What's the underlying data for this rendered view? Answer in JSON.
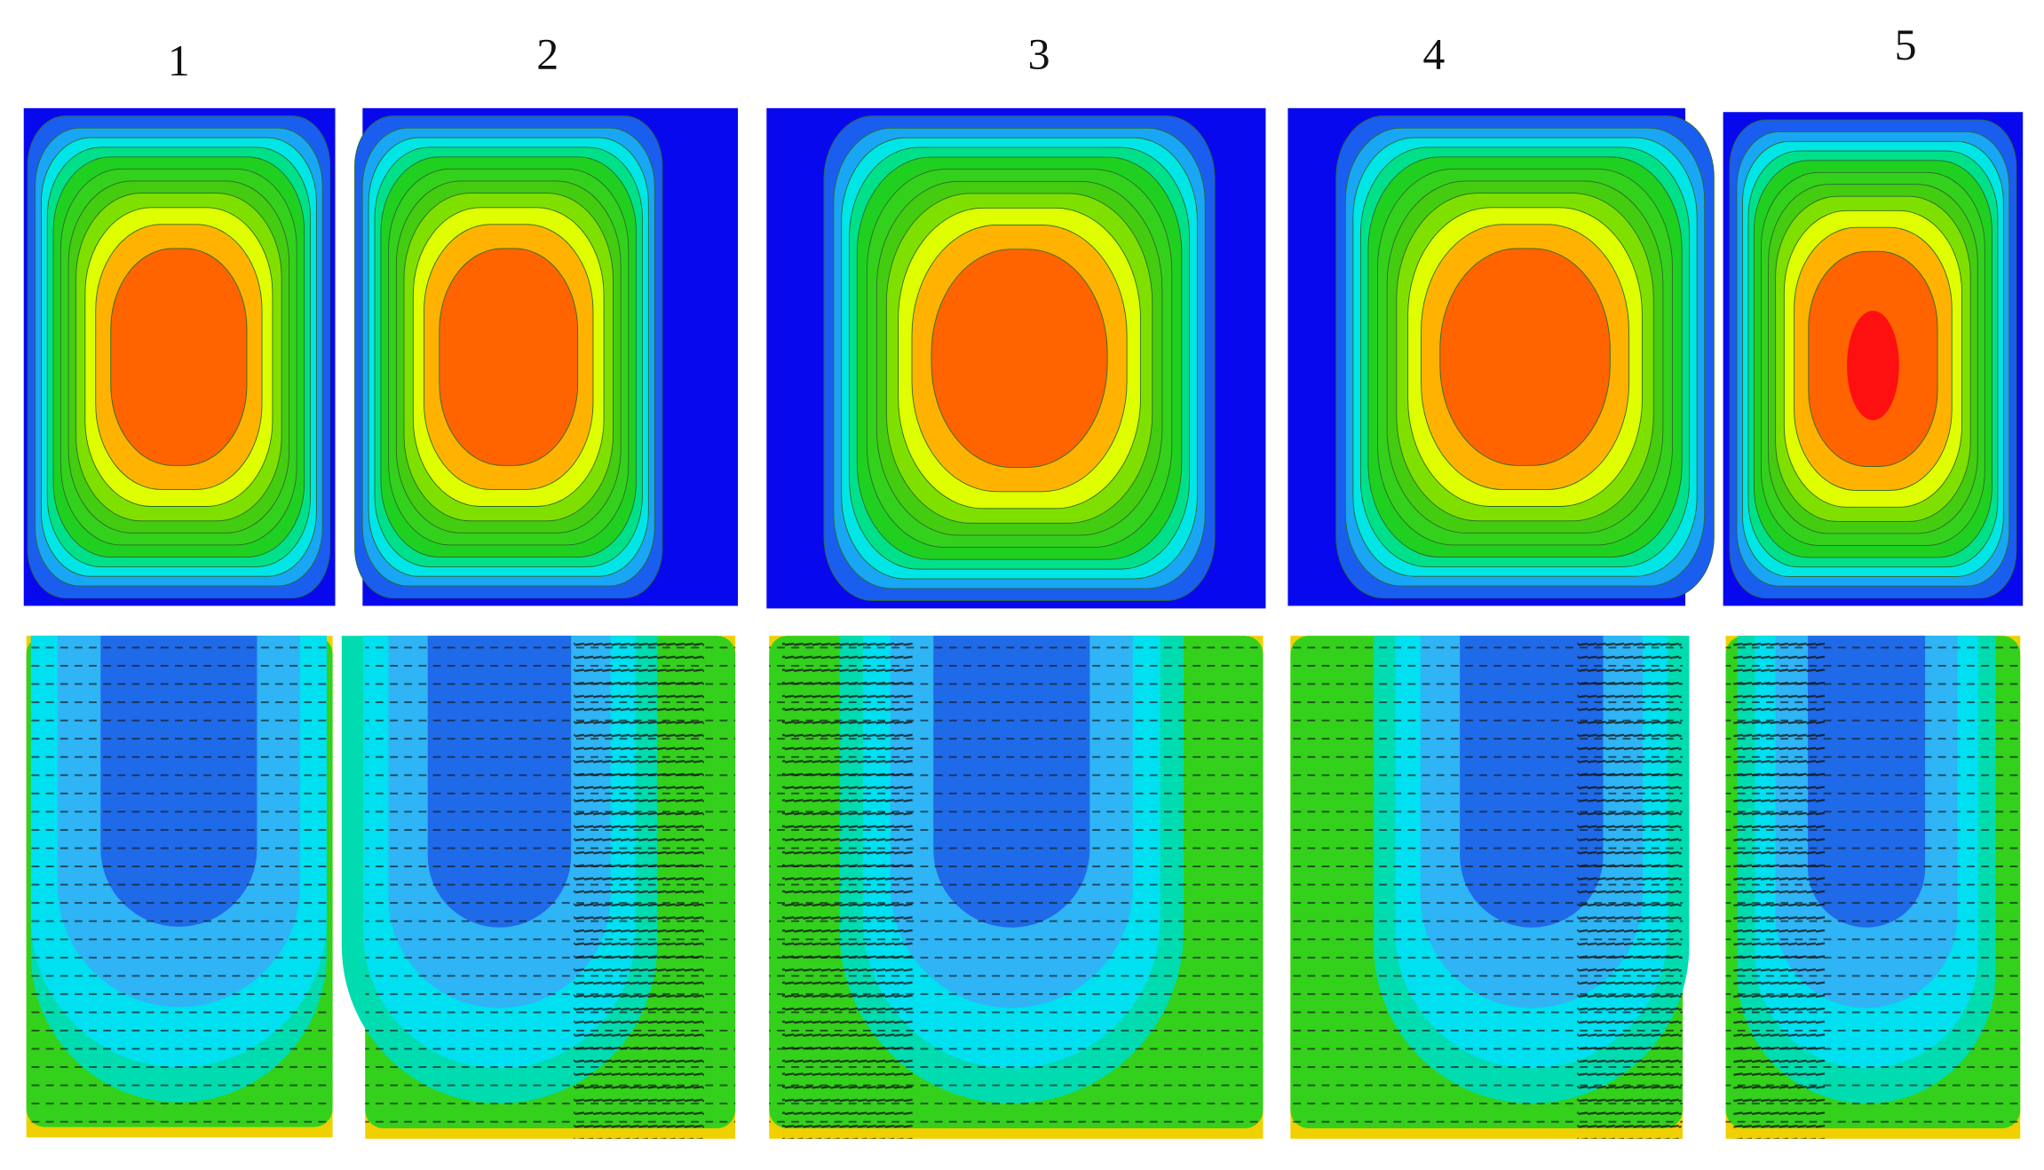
{
  "panels": [
    {
      "label": "1"
    },
    {
      "label": "2"
    },
    {
      "label": "3"
    },
    {
      "label": "4"
    },
    {
      "label": "5"
    }
  ]
}
